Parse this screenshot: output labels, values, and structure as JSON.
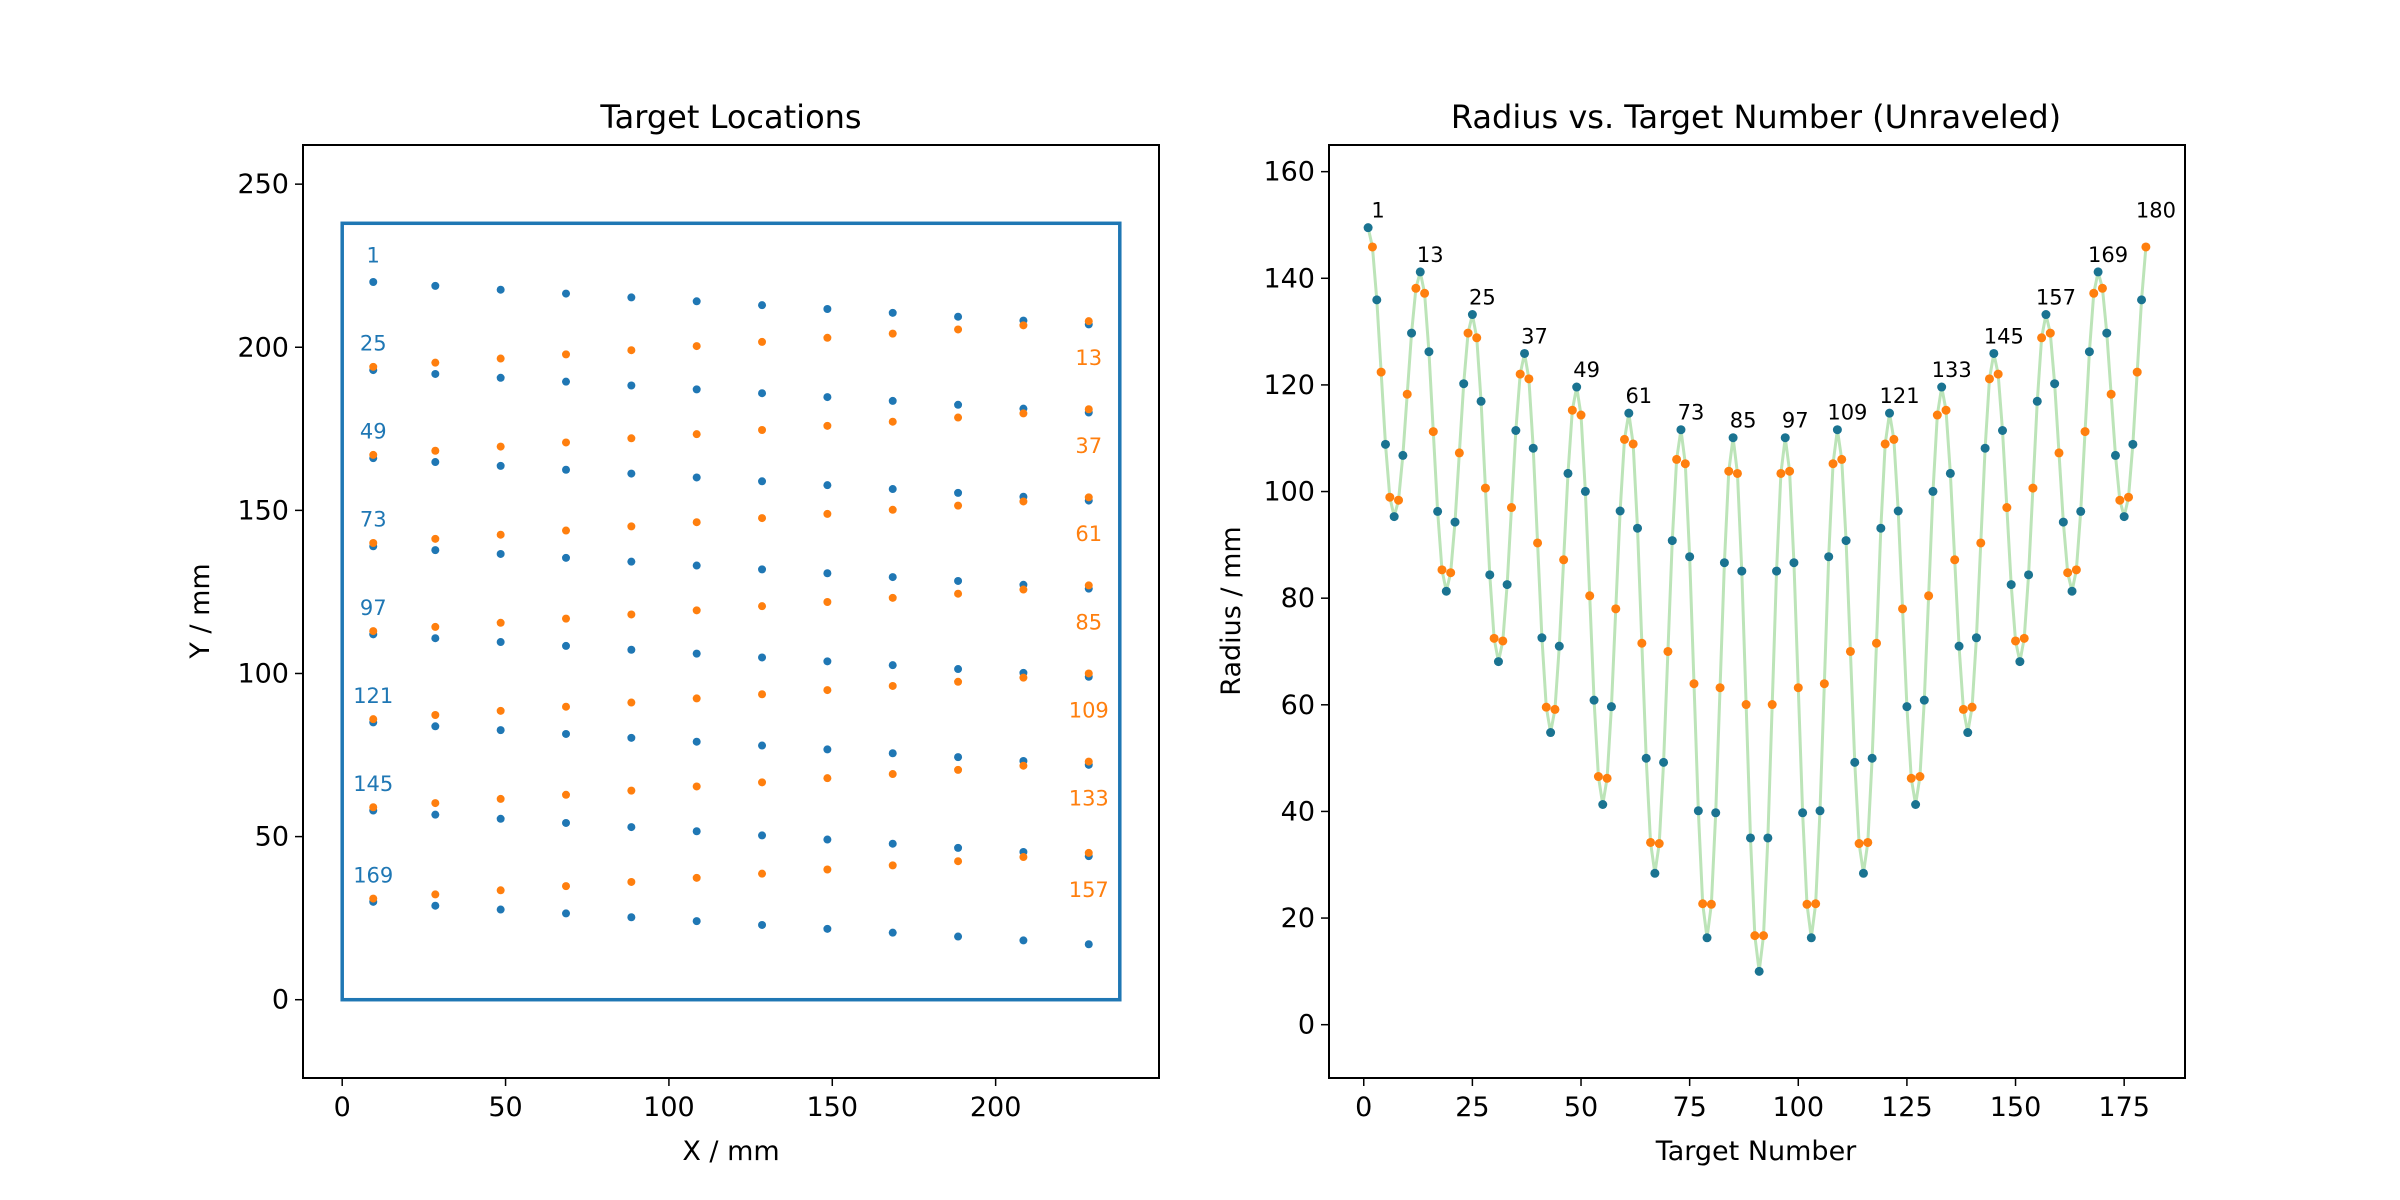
{
  "colors": {
    "blue": "#1f77b4",
    "orange": "#ff7f0e",
    "line": "#a6dba0",
    "teal": "#1a7391"
  },
  "chart_data": [
    {
      "type": "scatter",
      "title": "Target Locations",
      "xlabel": "X / mm",
      "ylabel": "Y / mm",
      "xlim": [
        -12,
        250
      ],
      "ylim": [
        -24,
        262
      ],
      "xticks": [
        0,
        50,
        100,
        150,
        200
      ],
      "yticks": [
        0,
        50,
        100,
        150,
        200,
        250
      ],
      "grid": false,
      "boundary": {
        "xmin": 0,
        "xmax": 238,
        "ymin": 0,
        "ymax": 238
      },
      "columns_x": [
        9.5,
        28.5,
        48.5,
        68.5,
        88.5,
        108.5,
        128.5,
        148.5,
        168.5,
        188.5,
        208.5,
        228.5
      ],
      "blue_rows": [
        {
          "y_start": 220,
          "y_end": 207
        },
        {
          "y_start": 193,
          "y_end": 180
        },
        {
          "y_start": 166,
          "y_end": 153
        },
        {
          "y_start": 139,
          "y_end": 126
        },
        {
          "y_start": 112,
          "y_end": 99
        },
        {
          "y_start": 85,
          "y_end": 72
        },
        {
          "y_start": 58,
          "y_end": 44
        },
        {
          "y_start": 30,
          "y_end": 17
        }
      ],
      "orange_rows": [
        {
          "y_start": 194,
          "y_end": 208
        },
        {
          "y_start": 167,
          "y_end": 181
        },
        {
          "y_start": 140,
          "y_end": 154
        },
        {
          "y_start": 113,
          "y_end": 127
        },
        {
          "y_start": 86,
          "y_end": 100
        },
        {
          "y_start": 59,
          "y_end": 73
        },
        {
          "y_start": 31,
          "y_end": 45
        }
      ],
      "annotations_blue": [
        {
          "text": "1",
          "x": 9.5,
          "y": 226
        },
        {
          "text": "25",
          "x": 9.5,
          "y": 199
        },
        {
          "text": "49",
          "x": 9.5,
          "y": 172
        },
        {
          "text": "73",
          "x": 9.5,
          "y": 145
        },
        {
          "text": "97",
          "x": 9.5,
          "y": 118
        },
        {
          "text": "121",
          "x": 9.5,
          "y": 91
        },
        {
          "text": "145",
          "x": 9.5,
          "y": 64
        },
        {
          "text": "169",
          "x": 9.5,
          "y": 36
        }
      ],
      "annotations_orange": [
        {
          "text": "13",
          "x": 228.5,
          "y": 197
        },
        {
          "text": "37",
          "x": 228.5,
          "y": 170
        },
        {
          "text": "61",
          "x": 228.5,
          "y": 143
        },
        {
          "text": "85",
          "x": 228.5,
          "y": 116
        },
        {
          "text": "109",
          "x": 228.5,
          "y": 89
        },
        {
          "text": "133",
          "x": 228.5,
          "y": 62
        },
        {
          "text": "157",
          "x": 228.5,
          "y": 34
        }
      ]
    },
    {
      "type": "line",
      "title": "Radius vs. Target Number (Unraveled)",
      "xlabel": "Target Number",
      "ylabel": "Radius / mm",
      "xlim": [
        -8,
        189
      ],
      "ylim": [
        -10,
        165
      ],
      "xticks": [
        0,
        25,
        50,
        75,
        100,
        125,
        150,
        175
      ],
      "yticks": [
        0,
        20,
        40,
        60,
        80,
        100,
        120,
        140,
        160
      ],
      "grid": false,
      "peak_radii": [
        149.5,
        141.2,
        133.2,
        125.9,
        119.6,
        114.7,
        111.6,
        110.1,
        110.1,
        111.6,
        114.7,
        119.6,
        125.9,
        133.2,
        141.2,
        149.5
      ],
      "valley_radii": [
        95.3,
        81.3,
        68.1,
        54.8,
        41.3,
        28.4,
        16.3,
        10.0,
        16.3,
        28.4,
        41.3,
        54.8,
        68.1,
        81.3,
        95.3
      ],
      "labels": [
        {
          "text": "1",
          "x": 1,
          "y": 149.5
        },
        {
          "text": "13",
          "x": 13,
          "y": 141.2
        },
        {
          "text": "25",
          "x": 25,
          "y": 133.2
        },
        {
          "text": "37",
          "x": 37,
          "y": 125.9
        },
        {
          "text": "49",
          "x": 49,
          "y": 119.6
        },
        {
          "text": "61",
          "x": 61,
          "y": 114.7
        },
        {
          "text": "73",
          "x": 73,
          "y": 111.6
        },
        {
          "text": "85",
          "x": 85,
          "y": 110.1
        },
        {
          "text": "97",
          "x": 97,
          "y": 110.1
        },
        {
          "text": "109",
          "x": 109,
          "y": 111.6
        },
        {
          "text": "121",
          "x": 121,
          "y": 114.7
        },
        {
          "text": "133",
          "x": 133,
          "y": 119.6
        },
        {
          "text": "145",
          "x": 145,
          "y": 125.9
        },
        {
          "text": "157",
          "x": 157,
          "y": 133.2
        },
        {
          "text": "169",
          "x": 169,
          "y": 141.2
        },
        {
          "text": "180",
          "x": 180,
          "y": 149.5
        }
      ]
    }
  ]
}
